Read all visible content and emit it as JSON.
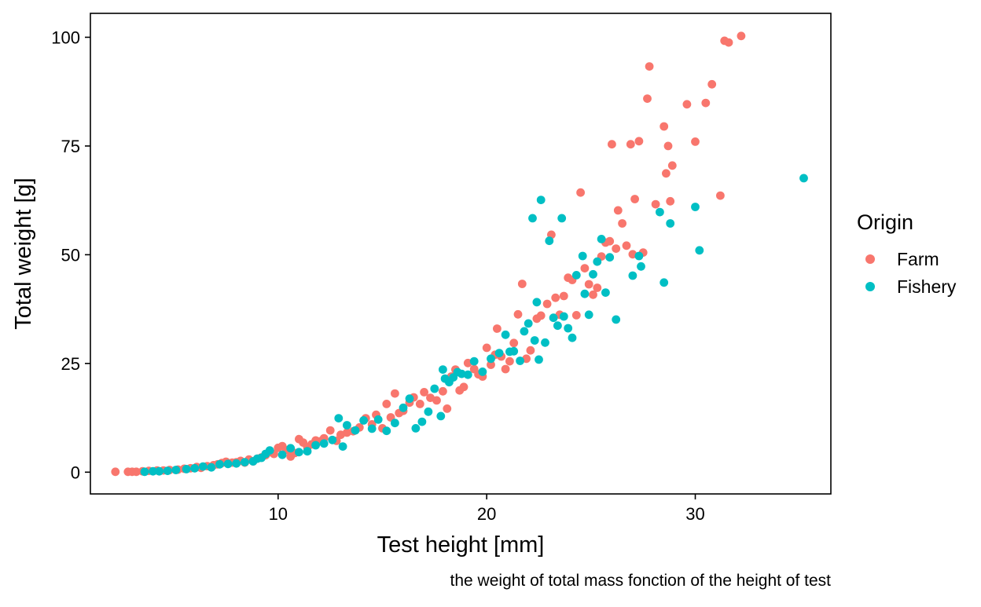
{
  "chart_data": {
    "type": "scatter",
    "title": "",
    "xlabel": "Test height  [mm]",
    "ylabel": "Total weight  [g]",
    "caption": "the weight of total mass fonction of the height of test",
    "xlim": [
      1,
      36.5
    ],
    "ylim": [
      -5,
      105.5
    ],
    "x_ticks": [
      10,
      20,
      30
    ],
    "y_ticks": [
      0,
      25,
      50,
      75,
      100
    ],
    "grid": false,
    "legend": {
      "title": "Origin",
      "position": "right"
    },
    "series": [
      {
        "name": "Farm",
        "color": "#F8766D",
        "points": [
          [
            2.2,
            0.1
          ],
          [
            2.8,
            0.1
          ],
          [
            3.0,
            0.1
          ],
          [
            3.2,
            0.1
          ],
          [
            3.5,
            0.2
          ],
          [
            3.8,
            0.3
          ],
          [
            4.2,
            0.4
          ],
          [
            4.5,
            0.4
          ],
          [
            4.8,
            0.5
          ],
          [
            5.2,
            0.6
          ],
          [
            5.5,
            0.8
          ],
          [
            5.8,
            0.9
          ],
          [
            6.1,
            1.2
          ],
          [
            6.3,
            1.0
          ],
          [
            6.6,
            1.4
          ],
          [
            6.9,
            1.6
          ],
          [
            7.1,
            1.8
          ],
          [
            7.3,
            2.1
          ],
          [
            7.5,
            2.4
          ],
          [
            7.8,
            2.2
          ],
          [
            8.0,
            2.3
          ],
          [
            8.2,
            2.6
          ],
          [
            8.4,
            2.2
          ],
          [
            8.6,
            2.9
          ],
          [
            8.8,
            2.5
          ],
          [
            9.0,
            3.1
          ],
          [
            9.2,
            3.4
          ],
          [
            9.4,
            3.9
          ],
          [
            9.6,
            4.6
          ],
          [
            9.8,
            4.2
          ],
          [
            10.0,
            5.6
          ],
          [
            10.2,
            6.0
          ],
          [
            10.4,
            5.1
          ],
          [
            10.6,
            3.6
          ],
          [
            10.8,
            4.4
          ],
          [
            11.0,
            7.6
          ],
          [
            11.2,
            6.8
          ],
          [
            11.4,
            5.7
          ],
          [
            11.6,
            6.4
          ],
          [
            11.8,
            7.3
          ],
          [
            12.0,
            7.1
          ],
          [
            12.2,
            7.8
          ],
          [
            12.5,
            9.6
          ],
          [
            12.8,
            7.2
          ],
          [
            13.0,
            8.6
          ],
          [
            13.3,
            9.1
          ],
          [
            13.6,
            9.4
          ],
          [
            13.9,
            10.3
          ],
          [
            14.2,
            12.4
          ],
          [
            14.5,
            11.0
          ],
          [
            14.7,
            13.2
          ],
          [
            15.0,
            10.1
          ],
          [
            15.2,
            15.7
          ],
          [
            15.4,
            12.6
          ],
          [
            15.6,
            18.1
          ],
          [
            15.8,
            13.6
          ],
          [
            16.0,
            14.1
          ],
          [
            16.3,
            16.0
          ],
          [
            16.5,
            17.2
          ],
          [
            16.8,
            15.7
          ],
          [
            17.0,
            18.4
          ],
          [
            17.3,
            17.1
          ],
          [
            17.6,
            16.5
          ],
          [
            17.9,
            18.6
          ],
          [
            18.1,
            14.6
          ],
          [
            18.3,
            22.0
          ],
          [
            18.5,
            23.6
          ],
          [
            18.7,
            18.8
          ],
          [
            18.9,
            19.6
          ],
          [
            19.1,
            25.1
          ],
          [
            19.4,
            23.7
          ],
          [
            19.6,
            22.5
          ],
          [
            19.8,
            22.0
          ],
          [
            20.0,
            28.6
          ],
          [
            20.2,
            24.7
          ],
          [
            20.4,
            27.0
          ],
          [
            20.5,
            33.0
          ],
          [
            20.7,
            26.6
          ],
          [
            20.9,
            23.7
          ],
          [
            21.1,
            25.5
          ],
          [
            21.3,
            29.7
          ],
          [
            21.5,
            36.3
          ],
          [
            21.7,
            43.3
          ],
          [
            21.9,
            26.1
          ],
          [
            22.1,
            28.0
          ],
          [
            22.4,
            35.3
          ],
          [
            22.6,
            36.0
          ],
          [
            22.9,
            38.7
          ],
          [
            23.1,
            54.6
          ],
          [
            23.3,
            40.1
          ],
          [
            23.5,
            36.2
          ],
          [
            23.7,
            40.5
          ],
          [
            23.9,
            44.7
          ],
          [
            24.1,
            44.2
          ],
          [
            24.3,
            36.1
          ],
          [
            24.5,
            64.3
          ],
          [
            24.7,
            46.9
          ],
          [
            24.9,
            43.2
          ],
          [
            25.1,
            40.8
          ],
          [
            25.3,
            42.4
          ],
          [
            25.5,
            49.6
          ],
          [
            25.7,
            52.8
          ],
          [
            25.9,
            53.1
          ],
          [
            26.0,
            75.4
          ],
          [
            26.2,
            51.4
          ],
          [
            26.3,
            60.2
          ],
          [
            26.5,
            57.2
          ],
          [
            26.7,
            52.1
          ],
          [
            26.9,
            75.4
          ],
          [
            27.0,
            50.1
          ],
          [
            27.1,
            62.8
          ],
          [
            27.3,
            76.1
          ],
          [
            27.5,
            50.5
          ],
          [
            27.7,
            85.9
          ],
          [
            27.8,
            93.3
          ],
          [
            28.1,
            61.6
          ],
          [
            28.5,
            79.5
          ],
          [
            28.6,
            68.7
          ],
          [
            28.7,
            75.0
          ],
          [
            28.8,
            62.3
          ],
          [
            28.9,
            70.5
          ],
          [
            29.6,
            84.6
          ],
          [
            30.0,
            76.0
          ],
          [
            30.5,
            84.9
          ],
          [
            30.8,
            89.2
          ],
          [
            31.2,
            63.6
          ],
          [
            31.4,
            99.2
          ],
          [
            31.6,
            98.8
          ],
          [
            32.2,
            100.3
          ]
        ]
      },
      {
        "name": "Fishery",
        "color": "#00BFC4",
        "points": [
          [
            3.6,
            0.1
          ],
          [
            4.0,
            0.2
          ],
          [
            4.3,
            0.2
          ],
          [
            4.7,
            0.3
          ],
          [
            5.1,
            0.5
          ],
          [
            5.6,
            0.7
          ],
          [
            6.0,
            0.9
          ],
          [
            6.4,
            1.3
          ],
          [
            6.8,
            1.1
          ],
          [
            7.2,
            1.8
          ],
          [
            7.6,
            1.9
          ],
          [
            8.0,
            2.0
          ],
          [
            8.4,
            2.3
          ],
          [
            8.8,
            2.5
          ],
          [
            9.0,
            3.1
          ],
          [
            9.2,
            3.3
          ],
          [
            9.4,
            4.2
          ],
          [
            9.6,
            5.0
          ],
          [
            10.2,
            4.0
          ],
          [
            10.6,
            5.5
          ],
          [
            11.0,
            4.6
          ],
          [
            11.4,
            4.8
          ],
          [
            11.8,
            6.2
          ],
          [
            12.2,
            6.6
          ],
          [
            12.6,
            7.4
          ],
          [
            12.9,
            12.4
          ],
          [
            13.1,
            5.9
          ],
          [
            13.3,
            10.8
          ],
          [
            13.7,
            9.6
          ],
          [
            14.1,
            11.9
          ],
          [
            14.5,
            10.0
          ],
          [
            14.8,
            12.1
          ],
          [
            15.2,
            9.5
          ],
          [
            15.6,
            11.3
          ],
          [
            16.0,
            14.8
          ],
          [
            16.3,
            16.9
          ],
          [
            16.6,
            10.1
          ],
          [
            16.9,
            11.6
          ],
          [
            17.2,
            13.9
          ],
          [
            17.5,
            19.2
          ],
          [
            17.8,
            12.9
          ],
          [
            17.9,
            23.6
          ],
          [
            18.0,
            21.5
          ],
          [
            18.2,
            20.7
          ],
          [
            18.4,
            21.8
          ],
          [
            18.6,
            23.0
          ],
          [
            18.8,
            22.6
          ],
          [
            19.1,
            22.4
          ],
          [
            19.4,
            25.5
          ],
          [
            19.8,
            23.1
          ],
          [
            20.2,
            26.1
          ],
          [
            20.6,
            27.4
          ],
          [
            20.9,
            31.6
          ],
          [
            21.1,
            27.7
          ],
          [
            21.3,
            27.8
          ],
          [
            21.6,
            25.6
          ],
          [
            21.8,
            32.4
          ],
          [
            22.0,
            34.2
          ],
          [
            22.2,
            58.4
          ],
          [
            22.3,
            30.3
          ],
          [
            22.4,
            39.1
          ],
          [
            22.5,
            25.9
          ],
          [
            22.6,
            62.6
          ],
          [
            22.8,
            29.8
          ],
          [
            23.0,
            53.2
          ],
          [
            23.2,
            35.5
          ],
          [
            23.4,
            33.7
          ],
          [
            23.6,
            58.4
          ],
          [
            23.7,
            35.8
          ],
          [
            23.9,
            33.1
          ],
          [
            24.1,
            30.9
          ],
          [
            24.3,
            45.3
          ],
          [
            24.6,
            49.7
          ],
          [
            24.7,
            41.0
          ],
          [
            24.9,
            36.2
          ],
          [
            25.1,
            45.5
          ],
          [
            25.3,
            48.4
          ],
          [
            25.5,
            53.6
          ],
          [
            25.7,
            41.3
          ],
          [
            25.9,
            49.4
          ],
          [
            26.2,
            35.1
          ],
          [
            27.0,
            45.2
          ],
          [
            27.3,
            49.7
          ],
          [
            27.4,
            47.3
          ],
          [
            28.3,
            59.8
          ],
          [
            28.5,
            43.6
          ],
          [
            28.8,
            57.2
          ],
          [
            30.0,
            61.0
          ],
          [
            30.2,
            51.0
          ],
          [
            35.2,
            67.6
          ]
        ]
      }
    ]
  }
}
